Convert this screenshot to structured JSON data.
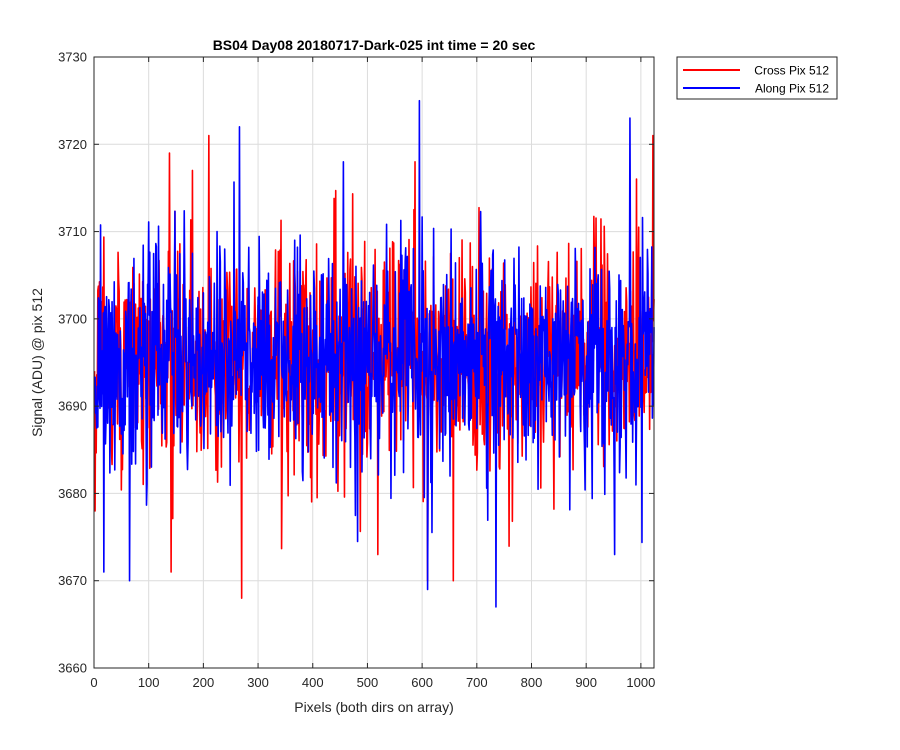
{
  "chart_data": {
    "type": "line",
    "title": "BS04 Day08 20180717-Dark-025 int time = 20 sec",
    "xlabel": "Pixels (both dirs on array)",
    "ylabel": "Signal (ADU) @ pix 512",
    "xlim": [
      0,
      1024
    ],
    "ylim": [
      3660,
      3730
    ],
    "xticks": [
      0,
      100,
      200,
      300,
      400,
      500,
      600,
      700,
      800,
      900,
      1000
    ],
    "yticks": [
      3660,
      3670,
      3680,
      3690,
      3700,
      3710,
      3720,
      3730
    ],
    "grid": true,
    "legend_position": "outside-top-right",
    "series": [
      {
        "name": "Cross Pix 512",
        "color": "#ff0000",
        "mean": 3695.5,
        "std": 6.5,
        "points_per_unit_x": 1,
        "x_start": 1,
        "x_end": 1024,
        "notable_points": [
          [
            2,
            3678
          ],
          [
            138,
            3719
          ],
          [
            141,
            3671
          ],
          [
            180,
            3717
          ],
          [
            210,
            3721
          ],
          [
            270,
            3668
          ],
          [
            587,
            3718
          ],
          [
            610,
            3670
          ],
          [
            657,
            3670
          ],
          [
            1022,
            3721
          ]
        ]
      },
      {
        "name": "Along Pix 512",
        "color": "#0000ff",
        "mean": 3695.5,
        "std": 6.5,
        "points_per_unit_x": 1,
        "x_start": 1,
        "x_end": 1024,
        "notable_points": [
          [
            18,
            3671
          ],
          [
            65,
            3670
          ],
          [
            266,
            3722
          ],
          [
            456,
            3718
          ],
          [
            595,
            3725
          ],
          [
            610,
            3669
          ],
          [
            735,
            3667
          ],
          [
            980,
            3723
          ]
        ]
      }
    ]
  }
}
